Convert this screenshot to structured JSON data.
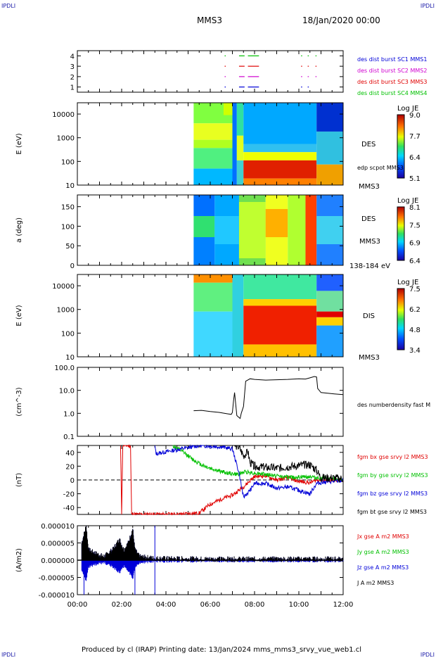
{
  "corners": {
    "tl": "IPDLI",
    "tr": "IPDLI",
    "bl": "IPDLI",
    "br": "IPDLI"
  },
  "header": {
    "title": "MMS3",
    "date": "18/Jan/2020 00:00"
  },
  "footer": {
    "text": "Produced by cl (IRAP)   Printing date: 13/Jan/2024   mms_mms3_srvy_vue_web1.cl"
  },
  "colors": {
    "blue": "#0000d8",
    "magenta": "#d000d0",
    "red": "#e00000",
    "green": "#00c000",
    "black": "#000000"
  },
  "chart_data": [
    {
      "id": "burst",
      "type": "line",
      "x_ticks": [
        "00:00",
        "02:00",
        "04:00",
        "06:00",
        "08:00",
        "10:00",
        "12:00"
      ],
      "y_ticks": [
        "1",
        "2",
        "3",
        "4"
      ],
      "ylim": [
        0.5,
        4.5
      ],
      "legend": [
        {
          "name": "des dist burst SC1 MMS1",
          "color": "#0000d8"
        },
        {
          "name": "des dist burst SC2 MMS2",
          "color": "#d000d0"
        },
        {
          "name": "des dist burst SC3 MMS3",
          "color": "#e00000"
        },
        {
          "name": "des dist burst SC4 MMS4",
          "color": "#00c000"
        }
      ],
      "series": [
        {
          "name": "des dist burst SC1 MMS1",
          "level": 1,
          "intervals": [
            [
              6.65,
              6.7
            ],
            [
              7.3,
              7.55
            ],
            [
              7.7,
              8.2
            ],
            [
              10.1,
              10.15
            ],
            [
              10.4,
              10.45
            ]
          ]
        },
        {
          "name": "des dist burst SC2 MMS2",
          "level": 2,
          "intervals": [
            [
              6.65,
              6.7
            ],
            [
              7.3,
              7.55
            ],
            [
              7.7,
              8.2
            ],
            [
              10.1,
              10.15
            ],
            [
              10.4,
              10.45
            ],
            [
              10.75,
              10.8
            ]
          ]
        },
        {
          "name": "des dist burst SC3 MMS3",
          "level": 3,
          "intervals": [
            [
              6.65,
              6.7
            ],
            [
              7.3,
              7.55
            ],
            [
              7.7,
              8.2
            ],
            [
              10.1,
              10.15
            ],
            [
              10.4,
              10.45
            ],
            [
              10.75,
              10.8
            ]
          ]
        },
        {
          "name": "des dist burst SC4 MMS4",
          "level": 4,
          "intervals": [
            [
              6.65,
              6.7
            ],
            [
              7.3,
              7.55
            ],
            [
              7.7,
              8.2
            ],
            [
              10.1,
              10.15
            ],
            [
              10.4,
              10.45
            ],
            [
              10.75,
              10.8
            ]
          ]
        }
      ]
    },
    {
      "id": "des_energy",
      "type": "heatmap",
      "ylabel": "E (eV)",
      "y_ticks": [
        "10",
        "100",
        "1000",
        "10000"
      ],
      "ylim": [
        10,
        30000
      ],
      "scale": "log",
      "labels": [
        "DES",
        "edp scpot MMS3",
        "MMS3"
      ],
      "colorbar": {
        "title": "Log JE",
        "ticks": [
          "9.0",
          "7.7",
          "6.4",
          "5.1"
        ]
      },
      "data_start": "05:15",
      "data_end": "12:00"
    },
    {
      "id": "des_pitch",
      "type": "heatmap",
      "ylabel": "a (deg)",
      "y_ticks": [
        "0",
        "50",
        "100",
        "150"
      ],
      "ylim": [
        0,
        180
      ],
      "labels": [
        "DES",
        "MMS3",
        "138-184 eV"
      ],
      "colorbar": {
        "title": "Log JE",
        "ticks": [
          "8.1",
          "7.5",
          "6.9",
          "6.4"
        ]
      },
      "data_start": "05:15",
      "data_end": "12:00"
    },
    {
      "id": "dis_energy",
      "type": "heatmap",
      "ylabel": "E (eV)",
      "y_ticks": [
        "10",
        "100",
        "1000",
        "10000"
      ],
      "ylim": [
        10,
        30000
      ],
      "scale": "log",
      "labels": [
        "DIS",
        "MMS3"
      ],
      "colorbar": {
        "title": "Log JE",
        "ticks": [
          "7.5",
          "6.2",
          "4.8",
          "3.4"
        ]
      },
      "data_start": "05:15",
      "data_end": "12:00"
    },
    {
      "id": "density",
      "type": "line",
      "ylabel": "(cm^-3)",
      "y_ticks": [
        "0.1",
        "1.0",
        "10.0",
        "100.0"
      ],
      "ylim": [
        0.1,
        100
      ],
      "scale": "log",
      "legend": [
        {
          "name": "des numberdensity fast M",
          "color": "#000000"
        }
      ],
      "series": [
        {
          "name": "des numberdensity fast M",
          "x": [
            5.25,
            5.6,
            6.0,
            6.4,
            6.8,
            6.95,
            7.0,
            7.05,
            7.1,
            7.2,
            7.3,
            7.35,
            7.4,
            7.5,
            7.6,
            7.8,
            8.0,
            8.5,
            9.0,
            9.5,
            10.0,
            10.3,
            10.5,
            10.7,
            10.8,
            10.85,
            11.0,
            11.3,
            11.6,
            12.0
          ],
          "y": [
            1.3,
            1.35,
            1.2,
            1.1,
            0.95,
            0.9,
            1.1,
            3.5,
            8.0,
            0.8,
            0.65,
            0.6,
            1.0,
            2.0,
            25.0,
            32.0,
            30.0,
            28.0,
            29.0,
            30.0,
            32.0,
            31.0,
            35.0,
            40.0,
            38.0,
            12.0,
            8.0,
            7.5,
            7.0,
            6.5
          ]
        }
      ]
    },
    {
      "id": "magnetic",
      "type": "line",
      "ylabel": "(nT)",
      "y_ticks": [
        "-40",
        "-20",
        "0",
        "20",
        "40"
      ],
      "ylim": [
        -50,
        50
      ],
      "legend": [
        {
          "name": "fgm bx gse srvy l2 MMS3",
          "color": "#e00000"
        },
        {
          "name": "fgm by gse srvy l2 MMS3",
          "color": "#00c000"
        },
        {
          "name": "fgm bz gse srvy l2 MMS3",
          "color": "#0000d8"
        },
        {
          "name": "fgm bt gse srvy l2 MMS3",
          "color": "#000000"
        }
      ],
      "series": [
        {
          "name": "fgm bx gse srvy l2 MMS3",
          "x": [
            1.95,
            2.0,
            2.05,
            2.4,
            2.45,
            4.5,
            5.5,
            6.0,
            6.5,
            7.0,
            7.5,
            8.0,
            8.5,
            9.0,
            9.5,
            10.0,
            10.5,
            10.8,
            11.0,
            11.5,
            12.0
          ],
          "y": [
            50,
            -50,
            50,
            50,
            -50,
            -50,
            -48,
            -35,
            -28,
            -22,
            -10,
            5,
            6,
            0,
            3,
            -2,
            -4,
            0,
            0,
            -1,
            0
          ]
        },
        {
          "name": "fgm by gse srvy l2 MMS3",
          "x": [
            4.3,
            4.8,
            5.2,
            5.6,
            6.0,
            6.4,
            6.8,
            7.2,
            7.6,
            8.0,
            8.5,
            9.0,
            9.5,
            10.0,
            10.5,
            10.8,
            11.2,
            11.6,
            12.0
          ],
          "y": [
            50,
            40,
            30,
            22,
            17,
            13,
            10,
            8,
            12,
            10,
            8,
            6,
            4,
            4,
            5,
            3,
            2,
            1,
            1
          ]
        },
        {
          "name": "fgm bz gse srvy l2 MMS3",
          "x": [
            3.5,
            3.55,
            5.5,
            6.5,
            7.0,
            7.3,
            7.5,
            7.8,
            8.0,
            8.5,
            9.0,
            9.5,
            10.0,
            10.5,
            10.8,
            11.2,
            11.6,
            12.0
          ],
          "y": [
            50,
            38,
            50,
            48,
            45,
            10,
            -25,
            -15,
            -5,
            -5,
            -12,
            -10,
            -15,
            -20,
            -5,
            -3,
            -2,
            -1
          ]
        },
        {
          "name": "fgm bt gse srvy l2 MMS3",
          "x": [
            7.1,
            7.3,
            7.5,
            7.7,
            7.8,
            8.0,
            8.5,
            9.0,
            9.5,
            10.0,
            10.5,
            10.8,
            11.0,
            11.5,
            12.0
          ],
          "y": [
            50,
            48,
            35,
            40,
            25,
            20,
            18,
            17,
            19,
            21,
            22,
            14,
            3,
            3,
            2
          ]
        }
      ]
    },
    {
      "id": "current",
      "type": "line",
      "ylabel": "(A/m2)",
      "y_ticks": [
        "-0.000010",
        "-0.000005",
        "0.000000",
        "0.000005",
        "0.000010"
      ],
      "ylim": [
        -1e-05,
        1e-05
      ],
      "x_ticks": [
        "00:00",
        "02:00",
        "04:00",
        "06:00",
        "08:00",
        "10:00",
        "12:00"
      ],
      "legend": [
        {
          "name": "Jx gse A m2 MMS3",
          "color": "#e00000"
        },
        {
          "name": "Jy gse A m2 MMS3",
          "color": "#00c000"
        },
        {
          "name": "Jz gse A m2 MMS3",
          "color": "#0000d8"
        },
        {
          "name": "J A m2 MMS3",
          "color": "#000000"
        }
      ],
      "series": [
        {
          "name": "J A m2 MMS3",
          "x": [
            0.2,
            0.4,
            0.5,
            0.8,
            1.2,
            1.6,
            1.9,
            2.1,
            2.3,
            2.5,
            2.6,
            2.8,
            3.5,
            6.0,
            9.0,
            12.0
          ],
          "y": [
            5e-06,
            1e-05,
            3e-06,
            2e-06,
            1e-06,
            3e-06,
            6e-06,
            3e-06,
            5e-06,
            9e-06,
            3e-06,
            1e-06,
            5e-07,
            3e-07,
            3e-07,
            3e-07
          ]
        }
      ]
    }
  ]
}
